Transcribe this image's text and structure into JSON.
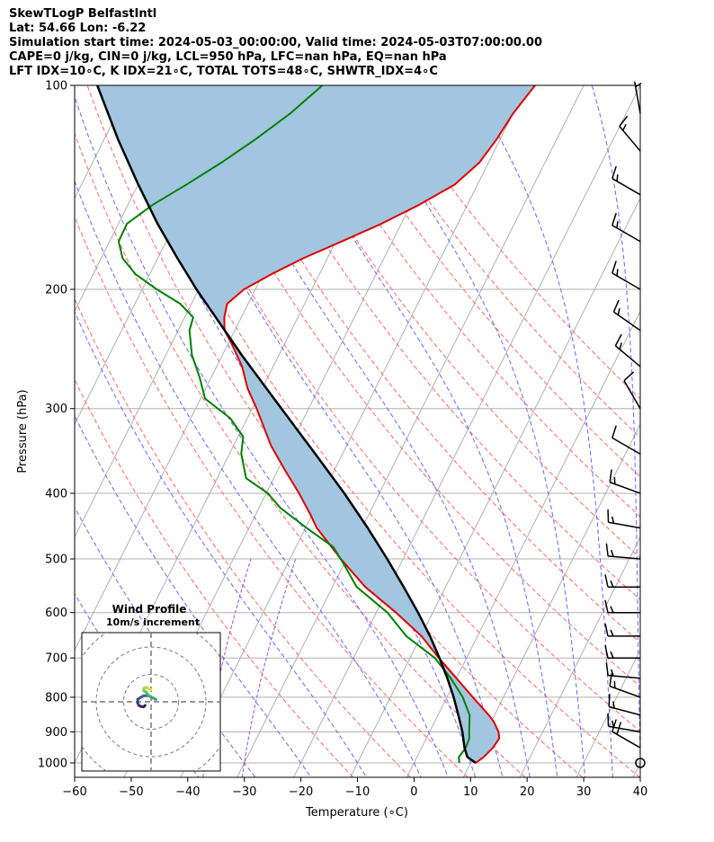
{
  "header": {
    "title": "SkewTLogP BelfastIntl",
    "location": "Lat: 54.66   Lon: -6.22",
    "times": "Simulation start time: 2024-05-03_00:00:00, Valid time: 2024-05-03T07:00:00.00",
    "params1": "CAPE=0 j/kg, CIN=0 j/kg, LCL=950 hPa, LFC=nan hPa, EQ=nan hPa",
    "params2": "LFT IDX=10∘C, K IDX=21∘C, TOTAL TOTS=48∘C, SHWTR_IDX=4∘C"
  },
  "colors": {
    "temperature": "#e00000",
    "dewpoint": "#008000",
    "parcel": "#000000",
    "shade": "#a3c6e0",
    "dry_adiabat": "#ff6666",
    "moist_adiabat": "#6666ff",
    "mixing_ratio": "#9955cc",
    "isotherm": "#b0b0b0"
  },
  "chart_data": {
    "type": "line",
    "title": "SkewTLogP BelfastIntl",
    "xlabel": "Temperature (∘C)",
    "ylabel": "Pressure (hPa)",
    "xlim": [
      -60,
      40
    ],
    "ylim": [
      1050,
      100
    ],
    "skew_c_per_decade": 60,
    "xticks": [
      "−60",
      "−50",
      "−40",
      "−30",
      "−20",
      "−10",
      "0",
      "10",
      "20",
      "30",
      "40"
    ],
    "xtick_values": [
      -60,
      -50,
      -40,
      -30,
      -20,
      -10,
      0,
      10,
      20,
      30,
      40
    ],
    "yticks": [
      "100",
      "200",
      "300",
      "400",
      "500",
      "600",
      "700",
      "800",
      "900",
      "1000"
    ],
    "ytick_values": [
      100,
      200,
      300,
      400,
      500,
      600,
      700,
      800,
      900,
      1000
    ],
    "series": [
      {
        "name": "Temperature",
        "p": [
          1000,
          980,
          950,
          920,
          900,
          870,
          850,
          800,
          750,
          700,
          650,
          600,
          550,
          500,
          450,
          430,
          400,
          370,
          340,
          300,
          280,
          260,
          240,
          230,
          220,
          210,
          200,
          190,
          180,
          170,
          160,
          150,
          140,
          130,
          120,
          110,
          100
        ],
        "t": [
          10.9,
          11.8,
          12.6,
          12.9,
          12.2,
          10.5,
          9.0,
          4.6,
          0.0,
          -4.9,
          -9.9,
          -16.5,
          -24.2,
          -31.0,
          -38.0,
          -40.3,
          -44.2,
          -48.7,
          -53.4,
          -59.2,
          -62.6,
          -65.5,
          -69.5,
          -71.8,
          -73.0,
          -73.7,
          -72.0,
          -68.5,
          -64.3,
          -59.0,
          -53.5,
          -48.5,
          -44.0,
          -41.6,
          -40.6,
          -40.0,
          -38.6
        ]
      },
      {
        "name": "Dewpoint",
        "p": [
          1000,
          980,
          950,
          920,
          900,
          850,
          800,
          750,
          700,
          650,
          600,
          550,
          510,
          480,
          450,
          420,
          400,
          380,
          350,
          330,
          310,
          290,
          270,
          250,
          230,
          220,
          210,
          200,
          190,
          180,
          170,
          160,
          150,
          140,
          130,
          120,
          110,
          100
        ],
        "t": [
          8.0,
          7.4,
          7.8,
          7.6,
          7.0,
          5.6,
          2.8,
          -1.0,
          -5.6,
          -12.6,
          -18.0,
          -25.7,
          -29.9,
          -33.4,
          -39.8,
          -46.3,
          -49.7,
          -54.9,
          -57.9,
          -59.1,
          -63.0,
          -69.2,
          -72.0,
          -75.4,
          -78.0,
          -78.5,
          -82.0,
          -87.4,
          -92.5,
          -96.2,
          -98.4,
          -98.5,
          -95.6,
          -91.4,
          -87.2,
          -83.2,
          -79.4,
          -76.2
        ]
      },
      {
        "name": "Parcel",
        "p": [
          1000,
          980,
          950,
          900,
          850,
          800,
          750,
          700,
          650,
          600,
          550,
          500,
          450,
          400,
          350,
          300,
          250,
          200,
          180,
          160,
          140,
          120,
          100
        ],
        "t": [
          10.9,
          8.9,
          7.6,
          5.8,
          3.6,
          1.2,
          -1.6,
          -4.8,
          -8.4,
          -12.6,
          -17.4,
          -22.8,
          -29.0,
          -36.2,
          -44.8,
          -54.8,
          -66.6,
          -80.4,
          -86.5,
          -93.1,
          -100.0,
          -107.6,
          -116.0
        ]
      }
    ],
    "isotherms_c": [
      -150,
      -140,
      -130,
      -120,
      -110,
      -100,
      -90,
      -80,
      -70,
      -60,
      -50,
      -40,
      -30,
      -20,
      -10,
      0,
      10,
      20,
      30,
      40
    ],
    "dry_adiabats_k": [
      260,
      270,
      280,
      290,
      300,
      310,
      320,
      330,
      340,
      350,
      360,
      370,
      380,
      390,
      400
    ],
    "moist_adiabats_c": [
      -40,
      -30,
      -20,
      -10,
      0,
      5,
      10,
      15,
      20,
      25,
      30,
      35,
      40
    ],
    "mixing_ratio_c_at_1000": [
      -30,
      -37
    ],
    "wind_barbs": [
      {
        "p": 1000,
        "speed_kt": 0,
        "dir": 0
      },
      {
        "p": 950,
        "speed_kt": 20,
        "dir": 300
      },
      {
        "p": 900,
        "speed_kt": 15,
        "dir": 280
      },
      {
        "p": 850,
        "speed_kt": 15,
        "dir": 285
      },
      {
        "p": 800,
        "speed_kt": 15,
        "dir": 290
      },
      {
        "p": 750,
        "speed_kt": 15,
        "dir": 275
      },
      {
        "p": 700,
        "speed_kt": 15,
        "dir": 270
      },
      {
        "p": 650,
        "speed_kt": 15,
        "dir": 270
      },
      {
        "p": 600,
        "speed_kt": 15,
        "dir": 270
      },
      {
        "p": 550,
        "speed_kt": 15,
        "dir": 270
      },
      {
        "p": 500,
        "speed_kt": 15,
        "dir": 275
      },
      {
        "p": 450,
        "speed_kt": 15,
        "dir": 280
      },
      {
        "p": 400,
        "speed_kt": 15,
        "dir": 290
      },
      {
        "p": 350,
        "speed_kt": 10,
        "dir": 300
      },
      {
        "p": 300,
        "speed_kt": 10,
        "dir": 330
      },
      {
        "p": 260,
        "speed_kt": 15,
        "dir": 310
      },
      {
        "p": 230,
        "speed_kt": 15,
        "dir": 305
      },
      {
        "p": 200,
        "speed_kt": 15,
        "dir": 300
      },
      {
        "p": 170,
        "speed_kt": 15,
        "dir": 300
      },
      {
        "p": 145,
        "speed_kt": 15,
        "dir": 300
      },
      {
        "p": 125,
        "speed_kt": 15,
        "dir": 320
      },
      {
        "p": 110,
        "speed_kt": 5,
        "dir": 350
      }
    ],
    "hodograph": {
      "title": "Wind Profile",
      "subtitle": "10m/s increment",
      "rings_ms": [
        10,
        20,
        30
      ],
      "u": [
        -2.5,
        -3,
        -4,
        -5,
        -5.5,
        -5.5,
        -4,
        -3,
        -2,
        -1,
        0,
        1,
        2,
        -1,
        -2,
        -3,
        -3,
        -3,
        -2,
        -1,
        0
      ],
      "v": [
        -1.5,
        -2,
        -2,
        -1.5,
        -0.5,
        1,
        2,
        2.5,
        2.5,
        2.5,
        2,
        1.5,
        1,
        2.5,
        4,
        4.5,
        5,
        5.5,
        6,
        5.5,
        5
      ]
    }
  }
}
